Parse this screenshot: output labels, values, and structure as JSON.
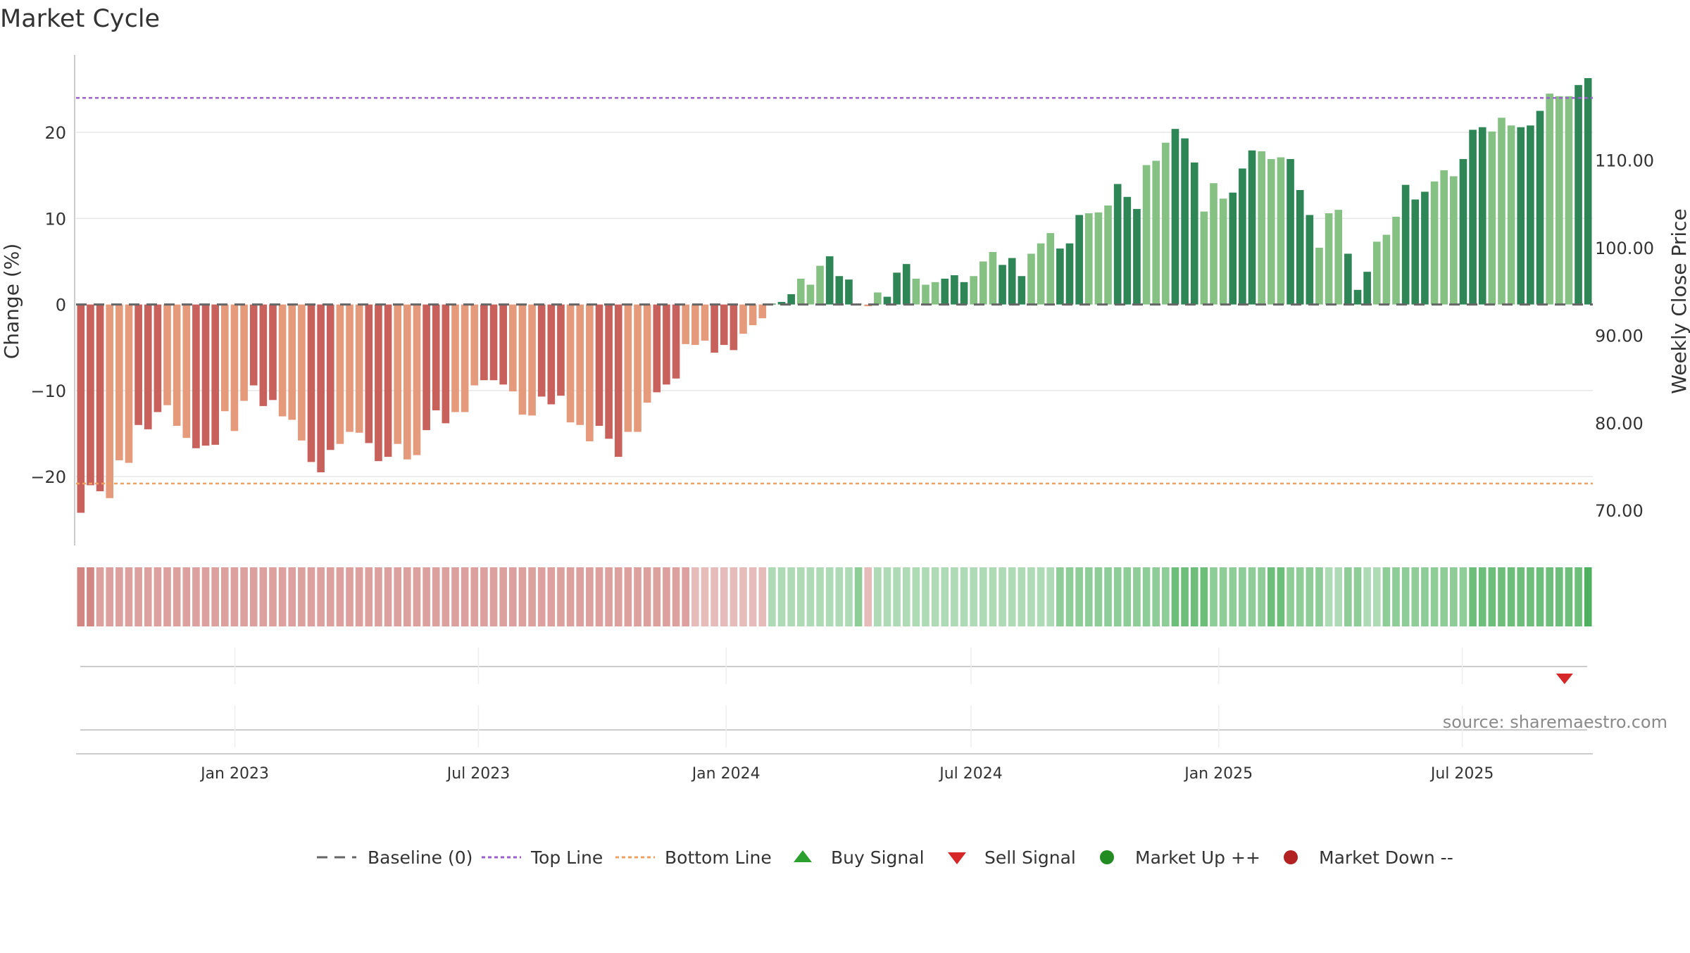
{
  "chart_data": {
    "type": "bar",
    "title": "Market Cycle",
    "ylabel": "Change (%)",
    "y2label": "Weekly Close Price",
    "ylim": [
      -28,
      29
    ],
    "y2lim": [
      66,
      122
    ],
    "yticks": [
      -20,
      -10,
      0,
      10,
      20
    ],
    "ytick_labels": [
      "−20",
      "−10",
      "0",
      "10",
      "20"
    ],
    "y2ticks": [
      70,
      80,
      90,
      100,
      110
    ],
    "y2tick_labels": [
      "70.00",
      "80.00",
      "90.00",
      "100.00",
      "110.00"
    ],
    "x_start": "2022-09-05",
    "x_end": "2025-10-06",
    "xticks": [
      "2023-01-01",
      "2023-07-01",
      "2024-01-01",
      "2024-07-01",
      "2025-01-01",
      "2025-07-01"
    ],
    "xtick_labels": [
      "Jan 2023",
      "Jul 2023",
      "Jan 2024",
      "Jul 2024",
      "Jan 2025",
      "Jul 2025"
    ],
    "top_line": 24,
    "bottom_line": -20.8,
    "baseline": 0,
    "grid": true,
    "legend_position": "bottom",
    "source": "source: sharemaestro.com",
    "colors": {
      "neg_strong": "#c8605b",
      "neg_light": "#e59a7c",
      "pos_strong": "#2e8556",
      "pos_light": "#86c184",
      "top_line": "#9b5fd0",
      "bottom_line": "#f0a060",
      "sell_signal": "#d62728",
      "buy_signal": "#2ca02c",
      "market_up": "#228b22",
      "market_down": "#b22222",
      "baseline": "#666666"
    },
    "series": [
      {
        "name": "Change (%)",
        "values": [
          -24.2,
          -21.0,
          -21.7,
          -22.5,
          -18.1,
          -18.4,
          -14.0,
          -14.5,
          -12.5,
          -11.7,
          -14.1,
          -15.5,
          -16.7,
          -16.4,
          -16.3,
          -12.4,
          -14.7,
          -11.2,
          -9.4,
          -11.8,
          -11.1,
          -13.0,
          -13.4,
          -15.8,
          -18.3,
          -19.5,
          -16.9,
          -16.2,
          -14.8,
          -14.9,
          -16.1,
          -18.2,
          -17.7,
          -16.2,
          -18.0,
          -17.5,
          -14.6,
          -12.3,
          -13.8,
          -12.5,
          -12.5,
          -9.4,
          -8.8,
          -8.8,
          -9.3,
          -10.1,
          -12.8,
          -12.9,
          -10.7,
          -11.6,
          -10.6,
          -13.7,
          -14.0,
          -15.9,
          -14.1,
          -15.6,
          -17.7,
          -14.8,
          -14.8,
          -11.4,
          -10.2,
          -9.3,
          -8.6,
          -4.6,
          -4.7,
          -4.2,
          -5.6,
          -4.7,
          -5.3,
          -3.4,
          -2.4,
          -1.6,
          0.1,
          0.3,
          1.2,
          3.0,
          2.3,
          4.5,
          5.6,
          3.3,
          2.9,
          0.1,
          -0.2,
          1.4,
          0.9,
          3.7,
          4.7,
          3.0,
          2.3,
          2.6,
          3.0,
          3.4,
          2.6,
          3.3,
          5.0,
          6.1,
          4.6,
          5.4,
          3.3,
          5.9,
          7.1,
          8.3,
          6.5,
          7.1,
          10.4,
          10.6,
          10.7,
          11.5,
          14.0,
          12.5,
          11.1,
          16.2,
          16.7,
          18.8,
          20.4,
          19.3,
          16.5,
          10.8,
          14.1,
          12.3,
          13.0,
          15.8,
          17.9,
          17.8,
          16.9,
          17.1,
          16.9,
          13.3,
          10.4,
          6.6,
          10.6,
          11.0,
          5.9,
          1.7,
          3.8,
          7.3,
          8.1,
          10.2,
          13.9,
          12.2,
          13.1,
          14.3,
          15.6,
          14.9,
          16.9,
          20.3,
          20.6,
          20.1,
          21.7,
          20.8,
          20.6,
          20.8,
          22.5,
          24.5,
          24.2,
          24.2,
          25.5,
          26.3
        ]
      }
    ],
    "strength_band": [
      2,
      2,
      1,
      1,
      1,
      1,
      1,
      1,
      1,
      1,
      1,
      1,
      1,
      1,
      1,
      1,
      1,
      1,
      1,
      1,
      1,
      1,
      1,
      1,
      1,
      1,
      1,
      1,
      1,
      1,
      1,
      1,
      1,
      1,
      1,
      1,
      1,
      1,
      1,
      1,
      1,
      1,
      1,
      1,
      1,
      1,
      1,
      1,
      1,
      1,
      1,
      1,
      1,
      1,
      1,
      1,
      1,
      1,
      1,
      1,
      1,
      1,
      1,
      1,
      0,
      0,
      0,
      0,
      0,
      0,
      0,
      0,
      0,
      0,
      0,
      0,
      0,
      0,
      0,
      0,
      0,
      1,
      0,
      0,
      0,
      0,
      0,
      0,
      0,
      0,
      0,
      0,
      0,
      0,
      0,
      0,
      0,
      0,
      0,
      0,
      0,
      0,
      1,
      1,
      1,
      1,
      1,
      1,
      1,
      1,
      1,
      1,
      1,
      1,
      2,
      2,
      2,
      2,
      1,
      1,
      1,
      1,
      1,
      1,
      2,
      2,
      1,
      1,
      1,
      1,
      0,
      0,
      1,
      1,
      0,
      0,
      1,
      1,
      1,
      1,
      1,
      1,
      1,
      1,
      1,
      2,
      2,
      2,
      2,
      2,
      2,
      2,
      2,
      2,
      2,
      2,
      2,
      3,
      3,
      3
    ],
    "signals": {
      "sell": [
        "2025-09-15"
      ],
      "buy": []
    },
    "legend": [
      {
        "key": "baseline",
        "label": "Baseline (0)"
      },
      {
        "key": "top",
        "label": "Top Line"
      },
      {
        "key": "bottom",
        "label": "Bottom Line"
      },
      {
        "key": "buy",
        "label": "Buy Signal"
      },
      {
        "key": "sell",
        "label": "Sell Signal"
      },
      {
        "key": "up",
        "label": "Market Up ++"
      },
      {
        "key": "down",
        "label": "Market Down --"
      }
    ]
  }
}
